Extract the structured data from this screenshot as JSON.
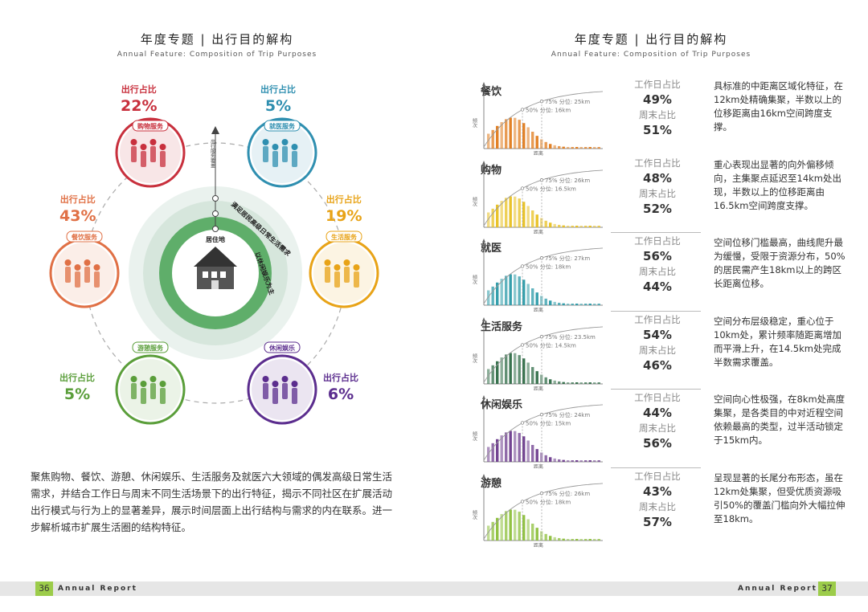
{
  "left": {
    "title": "年度专题 | 出行目的解构",
    "subtitle": "Annual Feature: Composition of Trip  Purposes",
    "share_label": "出行占比",
    "items": [
      {
        "name": "购物服务",
        "share": "22%",
        "color": "#c8303d"
      },
      {
        "name": "就医服务",
        "share": "5%",
        "color": "#2f8fb0"
      },
      {
        "name": "生活服务",
        "share": "19%",
        "color": "#e8a317"
      },
      {
        "name": "休闲娱乐",
        "share": "6%",
        "color": "#5b2d8e"
      },
      {
        "name": "游憩服务",
        "share": "5%",
        "color": "#5a9e3a"
      },
      {
        "name": "餐饮服务",
        "share": "43%",
        "color": "#e07045"
      }
    ],
    "center_label": "居住地",
    "ring_text_1": "满足居民高级日常生活需求",
    "ring_text_2": "以休闲娱乐为主",
    "axis_label": "出行服务覆盖",
    "body": "聚焦购物、餐饮、游憩、休闲娱乐、生活服务及就医六大领域的偶发高级日常生活需求，并结合工作日与周末不同生活场景下的出行特征，揭示不同社区在扩展活动出行模式与行为上的显著差异，展示时间层面上出行结构与需求的内在联系。进一步解析城市扩展生活圈的结构特征。",
    "page_num": "36",
    "footer": "Annual Report"
  },
  "right": {
    "title": "年度专题 | 出行目的解构",
    "subtitle": "Annual Feature: Composition of Trip  Purposes",
    "weekday_label": "工作日占比",
    "weekend_label": "周末占比",
    "y_axis": "频次",
    "x_axis": "距离",
    "rows": [
      {
        "name": "餐饮",
        "color": "#e07a1a",
        "p75": "75% 分位: 25km",
        "p50": "50% 分位: 16km",
        "weekday": "49%",
        "weekend": "51%",
        "desc": "具标准的中距离区域化特征，在12km处精确集聚，半数以上的位移距离由16km空间跨度支撑。"
      },
      {
        "name": "购物",
        "color": "#e8c020",
        "p75": "75% 分位: 26km",
        "p50": "50% 分位: 16.5km",
        "weekday": "48%",
        "weekend": "52%",
        "desc": "重心表现出显著的向外偏移倾向，主集聚点延迟至14km处出现，半数以上的位移距离由16.5km空间跨度支撑。"
      },
      {
        "name": "就医",
        "color": "#2a9aa8",
        "p75": "75% 分位: 27km",
        "p50": "50% 分位: 18km",
        "weekday": "56%",
        "weekend": "44%",
        "desc": "空间位移门槛最高，曲线爬升最为缓慢，受限于资源分布，50%的居民需产生18km以上的跨区长距离位移。"
      },
      {
        "name": "生活服务",
        "color": "#2e6b46",
        "p75": "75% 分位: 23.5km",
        "p50": "50% 分位: 14.5km",
        "weekday": "54%",
        "weekend": "46%",
        "desc": "空间分布层级稳定，重心位于10km处，累计频率随距离增加而平滑上升，在14.5km处完成半数需求覆盖。"
      },
      {
        "name": "休闲娱乐",
        "color": "#6b3a8c",
        "p75": "75% 分位: 24km",
        "p50": "50% 分位: 15km",
        "weekday": "44%",
        "weekend": "56%",
        "desc": "空间向心性极强，在8km处高度集聚，是各类目的中对近程空间依赖最高的类型，过半活动锁定于15km内。"
      },
      {
        "name": "游憩",
        "color": "#8cbf3a",
        "p75": "75% 分位: 26km",
        "p50": "50% 分位: 18km",
        "weekday": "43%",
        "weekend": "57%",
        "desc": "呈现显著的长尾分布形态，虽在12km处集聚，但受优质资源吸引50%的覆盖门槛向外大幅拉伸至18km。"
      }
    ],
    "page_num": "37",
    "footer": "Annual Report"
  }
}
